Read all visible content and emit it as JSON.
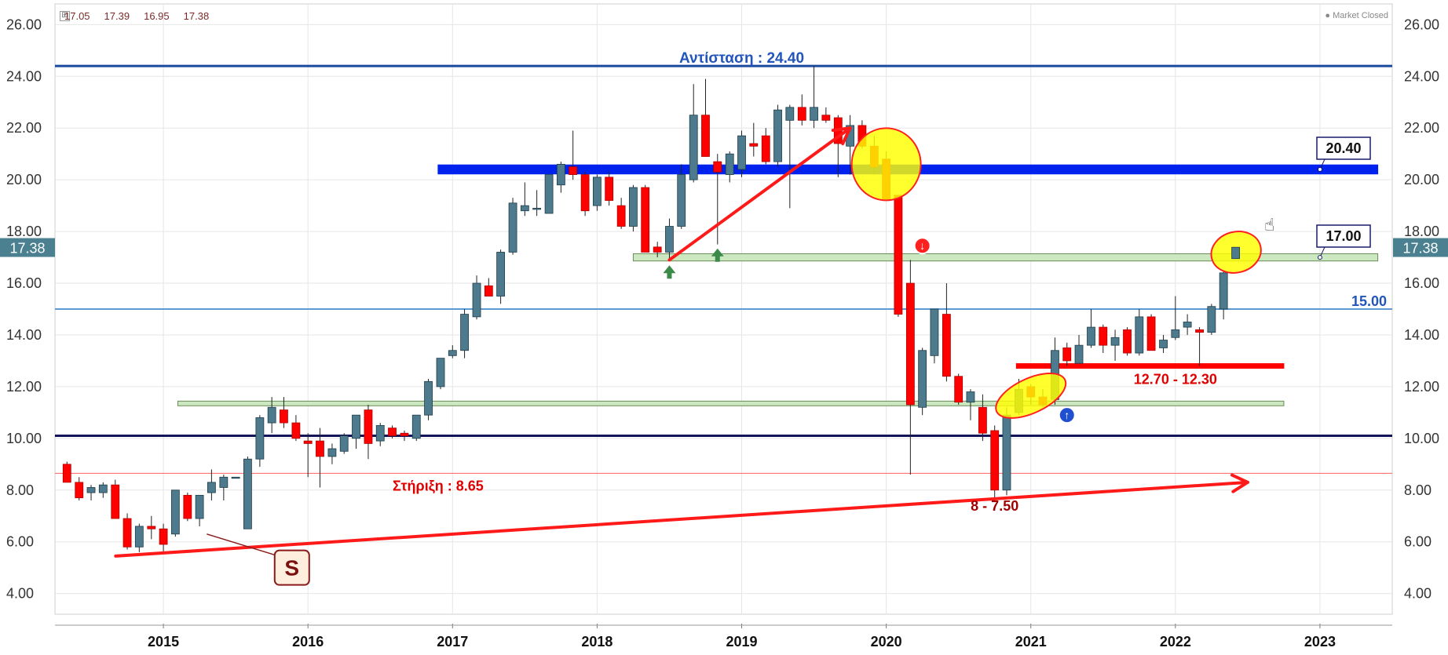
{
  "header": {
    "ohlc": [
      "17.05",
      "17.39",
      "16.95",
      "17.38"
    ],
    "status": "Market Closed"
  },
  "chart_data": {
    "type": "candlestick",
    "xlim": [
      2014.25,
      2023.5
    ],
    "ylim": [
      3.2,
      26.8
    ],
    "y_ticks": [
      "4.00",
      "6.00",
      "8.00",
      "10.00",
      "12.00",
      "14.00",
      "16.00",
      "18.00",
      "20.00",
      "22.00",
      "24.00",
      "26.00"
    ],
    "x_ticks": [
      "2015",
      "2016",
      "2017",
      "2018",
      "2019",
      "2020",
      "2021",
      "2022",
      "2023"
    ],
    "last_price": "17.38",
    "colors": {
      "up": "#4d7a8c",
      "down": "#ff0000",
      "resistance": "#1a4aa0",
      "zone_blue": "#0022ee",
      "support_line": "#ff5050",
      "zone_green": "#cce8c0"
    },
    "candles": [
      {
        "t": 2014.333,
        "o": 9.0,
        "h": 9.1,
        "l": 8.3,
        "c": 8.3
      },
      {
        "t": 2014.417,
        "o": 8.3,
        "h": 8.5,
        "l": 7.6,
        "c": 7.7
      },
      {
        "t": 2014.5,
        "o": 7.9,
        "h": 8.2,
        "l": 7.6,
        "c": 8.1
      },
      {
        "t": 2014.583,
        "o": 7.9,
        "h": 8.3,
        "l": 7.7,
        "c": 8.2
      },
      {
        "t": 2014.667,
        "o": 8.2,
        "h": 8.4,
        "l": 6.9,
        "c": 6.9
      },
      {
        "t": 2014.75,
        "o": 6.9,
        "h": 7.1,
        "l": 5.7,
        "c": 5.8
      },
      {
        "t": 2014.833,
        "o": 5.8,
        "h": 6.7,
        "l": 5.6,
        "c": 6.6
      },
      {
        "t": 2014.917,
        "o": 6.6,
        "h": 7.0,
        "l": 6.1,
        "c": 6.5
      },
      {
        "t": 2015.0,
        "o": 6.5,
        "h": 6.7,
        "l": 5.6,
        "c": 5.9
      },
      {
        "t": 2015.083,
        "o": 6.3,
        "h": 8.0,
        "l": 6.2,
        "c": 8.0
      },
      {
        "t": 2015.167,
        "o": 7.8,
        "h": 7.9,
        "l": 6.8,
        "c": 6.9
      },
      {
        "t": 2015.25,
        "o": 6.9,
        "h": 7.8,
        "l": 6.6,
        "c": 7.8
      },
      {
        "t": 2015.333,
        "o": 7.9,
        "h": 8.8,
        "l": 7.6,
        "c": 8.3
      },
      {
        "t": 2015.417,
        "o": 8.1,
        "h": 8.6,
        "l": 7.6,
        "c": 8.5
      },
      {
        "t": 2015.5,
        "o": 8.5,
        "h": 8.5,
        "l": 8.45,
        "c": 8.5
      },
      {
        "t": 2015.583,
        "o": 6.5,
        "h": 9.3,
        "l": 6.5,
        "c": 9.2
      },
      {
        "t": 2015.667,
        "o": 9.2,
        "h": 10.9,
        "l": 8.9,
        "c": 10.8
      },
      {
        "t": 2015.75,
        "o": 10.6,
        "h": 11.6,
        "l": 10.2,
        "c": 11.2
      },
      {
        "t": 2015.833,
        "o": 11.1,
        "h": 11.6,
        "l": 10.4,
        "c": 10.6
      },
      {
        "t": 2015.917,
        "o": 10.6,
        "h": 10.9,
        "l": 9.9,
        "c": 10.0
      },
      {
        "t": 2016.0,
        "o": 9.9,
        "h": 10.2,
        "l": 8.5,
        "c": 9.8
      },
      {
        "t": 2016.083,
        "o": 9.9,
        "h": 10.4,
        "l": 8.1,
        "c": 9.3
      },
      {
        "t": 2016.167,
        "o": 9.3,
        "h": 9.8,
        "l": 9.0,
        "c": 9.6
      },
      {
        "t": 2016.25,
        "o": 9.5,
        "h": 10.2,
        "l": 9.4,
        "c": 10.1
      },
      {
        "t": 2016.333,
        "o": 10.0,
        "h": 10.9,
        "l": 9.6,
        "c": 10.9
      },
      {
        "t": 2016.417,
        "o": 11.1,
        "h": 11.3,
        "l": 9.2,
        "c": 9.8
      },
      {
        "t": 2016.5,
        "o": 9.9,
        "h": 10.6,
        "l": 9.7,
        "c": 10.5
      },
      {
        "t": 2016.583,
        "o": 10.4,
        "h": 10.5,
        "l": 10.0,
        "c": 10.1
      },
      {
        "t": 2016.667,
        "o": 10.2,
        "h": 10.3,
        "l": 9.9,
        "c": 10.1
      },
      {
        "t": 2016.75,
        "o": 10.0,
        "h": 10.9,
        "l": 9.9,
        "c": 10.9
      },
      {
        "t": 2016.833,
        "o": 10.9,
        "h": 12.3,
        "l": 10.7,
        "c": 12.2
      },
      {
        "t": 2016.917,
        "o": 12.0,
        "h": 13.1,
        "l": 11.9,
        "c": 13.1
      },
      {
        "t": 2017.0,
        "o": 13.2,
        "h": 13.6,
        "l": 13.1,
        "c": 13.4
      },
      {
        "t": 2017.083,
        "o": 13.4,
        "h": 15.0,
        "l": 13.1,
        "c": 14.8
      },
      {
        "t": 2017.167,
        "o": 14.7,
        "h": 16.3,
        "l": 14.6,
        "c": 16.0
      },
      {
        "t": 2017.25,
        "o": 15.9,
        "h": 16.2,
        "l": 15.5,
        "c": 15.5
      },
      {
        "t": 2017.333,
        "o": 15.5,
        "h": 17.3,
        "l": 15.2,
        "c": 17.2
      },
      {
        "t": 2017.417,
        "o": 17.2,
        "h": 19.3,
        "l": 17.1,
        "c": 19.1
      },
      {
        "t": 2017.5,
        "o": 18.8,
        "h": 19.9,
        "l": 18.6,
        "c": 19.0
      },
      {
        "t": 2017.583,
        "o": 18.9,
        "h": 19.6,
        "l": 18.6,
        "c": 18.9
      },
      {
        "t": 2017.667,
        "o": 18.7,
        "h": 20.2,
        "l": 18.7,
        "c": 20.2
      },
      {
        "t": 2017.75,
        "o": 19.8,
        "h": 20.7,
        "l": 19.5,
        "c": 20.6
      },
      {
        "t": 2017.833,
        "o": 20.5,
        "h": 21.9,
        "l": 20.0,
        "c": 20.2
      },
      {
        "t": 2017.917,
        "o": 20.2,
        "h": 20.3,
        "l": 18.6,
        "c": 18.8
      },
      {
        "t": 2018.0,
        "o": 19.0,
        "h": 20.2,
        "l": 18.8,
        "c": 20.1
      },
      {
        "t": 2018.083,
        "o": 20.1,
        "h": 20.3,
        "l": 19.0,
        "c": 19.2
      },
      {
        "t": 2018.167,
        "o": 19.0,
        "h": 19.3,
        "l": 18.1,
        "c": 18.2
      },
      {
        "t": 2018.25,
        "o": 18.2,
        "h": 19.8,
        "l": 18.0,
        "c": 19.7
      },
      {
        "t": 2018.333,
        "o": 19.7,
        "h": 19.8,
        "l": 17.2,
        "c": 17.2
      },
      {
        "t": 2018.417,
        "o": 17.4,
        "h": 17.6,
        "l": 17.0,
        "c": 17.2
      },
      {
        "t": 2018.5,
        "o": 17.2,
        "h": 18.5,
        "l": 16.9,
        "c": 18.2
      },
      {
        "t": 2018.583,
        "o": 18.2,
        "h": 20.6,
        "l": 18.1,
        "c": 20.2
      },
      {
        "t": 2018.667,
        "o": 20.0,
        "h": 23.7,
        "l": 19.9,
        "c": 22.5
      },
      {
        "t": 2018.75,
        "o": 22.5,
        "h": 23.9,
        "l": 20.9,
        "c": 20.9
      },
      {
        "t": 2018.833,
        "o": 20.7,
        "h": 21.0,
        "l": 17.5,
        "c": 20.3
      },
      {
        "t": 2018.917,
        "o": 20.2,
        "h": 21.1,
        "l": 19.9,
        "c": 21.0
      },
      {
        "t": 2019.0,
        "o": 20.4,
        "h": 21.9,
        "l": 20.1,
        "c": 21.7
      },
      {
        "t": 2019.083,
        "o": 21.4,
        "h": 22.2,
        "l": 20.9,
        "c": 21.3
      },
      {
        "t": 2019.167,
        "o": 21.7,
        "h": 22.0,
        "l": 20.6,
        "c": 20.7
      },
      {
        "t": 2019.25,
        "o": 20.7,
        "h": 22.9,
        "l": 20.5,
        "c": 22.7
      },
      {
        "t": 2019.333,
        "o": 22.3,
        "h": 22.9,
        "l": 18.9,
        "c": 22.8
      },
      {
        "t": 2019.417,
        "o": 22.8,
        "h": 23.3,
        "l": 22.1,
        "c": 22.3
      },
      {
        "t": 2019.5,
        "o": 22.3,
        "h": 24.4,
        "l": 22.0,
        "c": 22.8
      },
      {
        "t": 2019.583,
        "o": 22.5,
        "h": 22.8,
        "l": 22.2,
        "c": 22.3
      },
      {
        "t": 2019.667,
        "o": 22.4,
        "h": 22.5,
        "l": 20.1,
        "c": 21.4
      },
      {
        "t": 2019.75,
        "o": 21.3,
        "h": 22.5,
        "l": 20.2,
        "c": 22.1
      },
      {
        "t": 2019.833,
        "o": 22.1,
        "h": 22.3,
        "l": 21.2,
        "c": 21.3
      },
      {
        "t": 2019.917,
        "o": 21.3,
        "h": 21.7,
        "l": 20.2,
        "c": 20.5
      },
      {
        "t": 2020.0,
        "o": 20.8,
        "h": 21.1,
        "l": 19.2,
        "c": 19.2
      },
      {
        "t": 2020.083,
        "o": 19.4,
        "h": 19.4,
        "l": 14.7,
        "c": 14.8
      },
      {
        "t": 2020.167,
        "o": 16.0,
        "h": 16.9,
        "l": 8.6,
        "c": 11.3
      },
      {
        "t": 2020.25,
        "o": 11.2,
        "h": 13.5,
        "l": 10.9,
        "c": 13.4
      },
      {
        "t": 2020.333,
        "o": 13.2,
        "h": 15.0,
        "l": 12.9,
        "c": 15.0
      },
      {
        "t": 2020.417,
        "o": 14.8,
        "h": 16.0,
        "l": 12.2,
        "c": 12.4
      },
      {
        "t": 2020.5,
        "o": 12.4,
        "h": 12.5,
        "l": 11.3,
        "c": 11.4
      },
      {
        "t": 2020.583,
        "o": 11.4,
        "h": 11.9,
        "l": 10.7,
        "c": 11.8
      },
      {
        "t": 2020.667,
        "o": 11.2,
        "h": 11.7,
        "l": 9.9,
        "c": 10.2
      },
      {
        "t": 2020.75,
        "o": 10.3,
        "h": 10.5,
        "l": 7.6,
        "c": 8.0
      },
      {
        "t": 2020.833,
        "o": 8.0,
        "h": 11.2,
        "l": 7.8,
        "c": 10.9
      },
      {
        "t": 2020.917,
        "o": 11.0,
        "h": 12.3,
        "l": 10.9,
        "c": 11.9
      },
      {
        "t": 2021.0,
        "o": 12.0,
        "h": 12.1,
        "l": 11.3,
        "c": 11.6
      },
      {
        "t": 2021.083,
        "o": 11.6,
        "h": 11.9,
        "l": 11.2,
        "c": 11.3
      },
      {
        "t": 2021.167,
        "o": 11.5,
        "h": 13.9,
        "l": 11.3,
        "c": 13.4
      },
      {
        "t": 2021.25,
        "o": 13.5,
        "h": 13.7,
        "l": 12.8,
        "c": 13.0
      },
      {
        "t": 2021.333,
        "o": 12.9,
        "h": 14.0,
        "l": 12.9,
        "c": 13.6
      },
      {
        "t": 2021.417,
        "o": 13.6,
        "h": 15.0,
        "l": 13.5,
        "c": 14.3
      },
      {
        "t": 2021.5,
        "o": 14.3,
        "h": 14.4,
        "l": 13.3,
        "c": 13.6
      },
      {
        "t": 2021.583,
        "o": 13.6,
        "h": 14.2,
        "l": 13.0,
        "c": 13.9
      },
      {
        "t": 2021.667,
        "o": 14.2,
        "h": 14.3,
        "l": 13.2,
        "c": 13.3
      },
      {
        "t": 2021.75,
        "o": 13.3,
        "h": 15.0,
        "l": 13.2,
        "c": 14.7
      },
      {
        "t": 2021.833,
        "o": 14.7,
        "h": 14.8,
        "l": 13.4,
        "c": 13.4
      },
      {
        "t": 2021.917,
        "o": 13.5,
        "h": 14.0,
        "l": 13.3,
        "c": 13.8
      },
      {
        "t": 2022.0,
        "o": 13.9,
        "h": 15.5,
        "l": 13.8,
        "c": 14.2
      },
      {
        "t": 2022.083,
        "o": 14.3,
        "h": 14.8,
        "l": 14.0,
        "c": 14.5
      },
      {
        "t": 2022.167,
        "o": 14.2,
        "h": 14.3,
        "l": 12.8,
        "c": 14.1
      },
      {
        "t": 2022.25,
        "o": 14.1,
        "h": 15.2,
        "l": 14.0,
        "c": 15.1
      },
      {
        "t": 2022.333,
        "o": 15.0,
        "h": 16.5,
        "l": 14.6,
        "c": 16.4
      },
      {
        "t": 2022.417,
        "o": 17.05,
        "h": 17.39,
        "l": 16.95,
        "c": 17.38
      }
    ],
    "annotations": [
      {
        "type": "hline",
        "y": 24.4,
        "color": "#1a4aa0",
        "width": 3,
        "label": "Αντίσταση : 24.40",
        "label_color": "#2255bb"
      },
      {
        "type": "zone",
        "y": 20.4,
        "x0": 2016.9,
        "x1": 2023.4,
        "height": 0.35,
        "color": "#0022ee",
        "callout": "20.40"
      },
      {
        "type": "zone",
        "y": 17.0,
        "x0": 2018.25,
        "x1": 2023.4,
        "height": 0.28,
        "color": "#cce8c0",
        "callout": "17.00"
      },
      {
        "type": "hline",
        "y": 15.0,
        "color": "#5b9ad5",
        "width": 2,
        "label": "15.00",
        "label_color": "#2255bb"
      },
      {
        "type": "zone",
        "y": 12.8,
        "x0": 2020.9,
        "x1": 2022.75,
        "height": 0.18,
        "color": "#ff0000",
        "label": "12.70 - 12.30"
      },
      {
        "type": "zone",
        "y": 11.35,
        "x0": 2015.1,
        "x1": 2022.75,
        "height": 0.18,
        "color": "#cce8c0"
      },
      {
        "type": "hline",
        "y": 10.1,
        "color": "#14145a",
        "width": 3
      },
      {
        "type": "hline",
        "y": 8.65,
        "color": "#ff6060",
        "width": 1,
        "label": "Στήριξη : 8.65",
        "label_color": "#e00000"
      },
      {
        "type": "label",
        "text": "8 - 7.50",
        "color": "#a00000"
      },
      {
        "type": "label",
        "text": "S",
        "color": "#7a1010"
      }
    ]
  }
}
